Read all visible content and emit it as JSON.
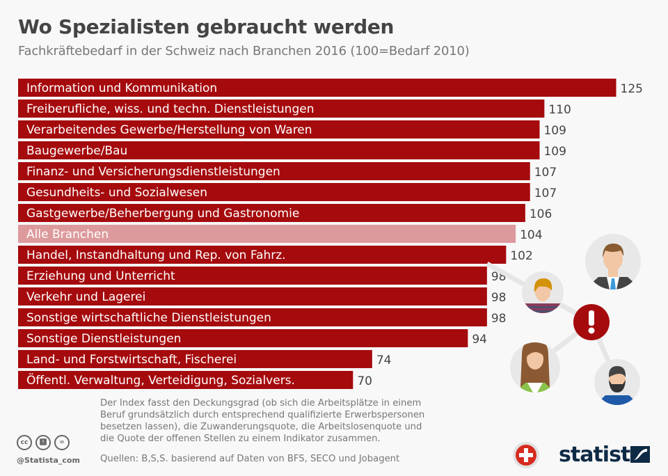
{
  "title": "Wo Spezialisten gebraucht werden",
  "subtitle": "Fachkräftebedarf in der Schweiz nach Branchen 2016 (100=Bedarf 2010)",
  "colors": {
    "bar": "#a50a0d",
    "highlight": "#dd9a9c",
    "value_text": "#444444"
  },
  "chart_data": {
    "type": "bar",
    "orientation": "horizontal",
    "title": "Wo Spezialisten gebraucht werden",
    "subtitle": "Fachkräftebedarf in der Schweiz nach Branchen 2016 (100=Bedarf 2010)",
    "xlabel": "",
    "ylabel": "",
    "xlim": [
      0,
      125
    ],
    "grid": false,
    "categories": [
      "Information und Kommunikation",
      "Freiberufliche, wiss. und techn. Dienstleistungen",
      "Verarbeitendes Gewerbe/Herstellung von Waren",
      "Baugewerbe/Bau",
      "Finanz- und Versicherungsdienstleistungen",
      "Gesundheits- und Sozialwesen",
      "Gastgewerbe/Beherbergung und Gastronomie",
      "Alle Branchen",
      "Handel, Instandhaltung und Rep. von Fahrz.",
      "Erziehung und Unterricht",
      "Verkehr und Lagerei",
      "Sonstige wirtschaftliche Dienstleistungen",
      "Sonstige Dienstleistungen",
      "Land- und Forstwirtschaft, Fischerei",
      "Öffentl. Verwaltung, Verteidigung, Sozialvers."
    ],
    "values": [
      125,
      110,
      109,
      109,
      107,
      107,
      106,
      104,
      102,
      98,
      98,
      98,
      94,
      74,
      70
    ],
    "highlighted": [
      "Alle Branchen"
    ]
  },
  "footer": {
    "note": "Der Index fasst den Deckungsgrad (ob sich die Arbeitsplätze in einem Beruf grundsätzlich durch entsprechend qualifizierte Erwerbspersonen besetzen lassen), die Zuwanderungsquote, die Arbeitslosenquote und die Quote der offenen Stellen zu einem Indikator zusammen.",
    "source": "Quellen: B,S,S. basierend auf Daten von BFS, SECO und Jobagent",
    "handle": "@Statista_com",
    "brand": "statista",
    "cc_icons": [
      "cc",
      "by",
      "nd"
    ]
  }
}
